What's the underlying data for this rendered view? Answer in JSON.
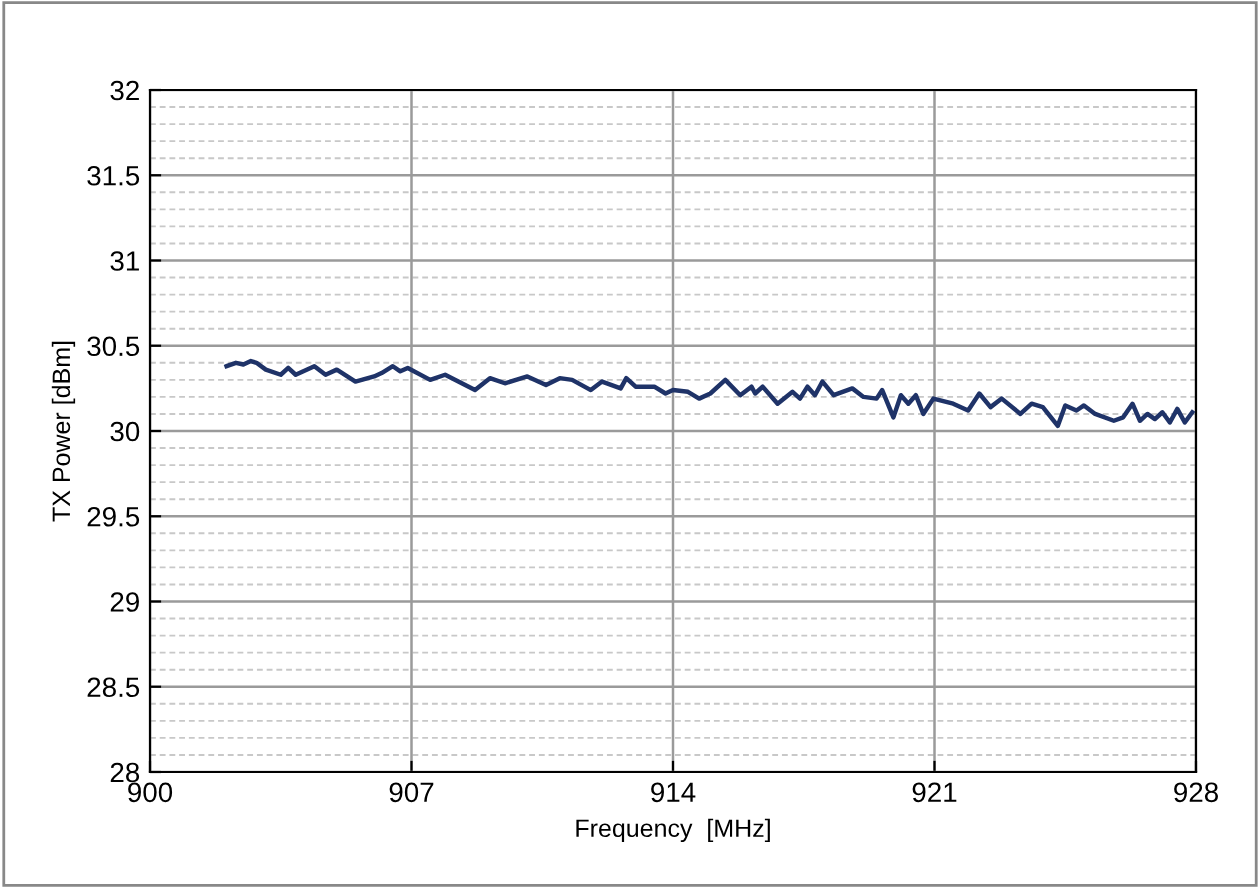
{
  "chart_data": {
    "type": "line",
    "xlabel": "Frequency  [MHz]",
    "ylabel": "TX Power [dBm]",
    "xlim": [
      900,
      928
    ],
    "xticks": [
      900,
      907,
      914,
      921,
      928
    ],
    "ylim": [
      28,
      32
    ],
    "yticks": [
      28,
      {
        "value": 28.5,
        "label": "28.5"
      },
      29,
      {
        "value": 29.5,
        "label": "29.5"
      },
      30,
      {
        "value": 30.5,
        "label": "30.5"
      },
      31,
      {
        "value": 31.5,
        "label": "31.5"
      },
      32
    ],
    "grid": true,
    "legend": false,
    "marker": "none",
    "line_style": "solid",
    "series": [
      {
        "color": "#1f3368",
        "x": [
          902.05,
          902.3,
          902.5,
          902.7,
          902.85,
          903.1,
          903.5,
          903.7,
          903.9,
          904.4,
          904.7,
          905.0,
          905.5,
          906.0,
          906.2,
          906.5,
          906.7,
          906.9,
          907.5,
          907.9,
          908.7,
          909.1,
          909.5,
          910.1,
          910.6,
          910.97,
          911.3,
          911.8,
          912.1,
          912.6,
          912.75,
          913.0,
          913.5,
          913.8,
          914.0,
          914.4,
          914.7,
          915.0,
          915.4,
          915.8,
          916.1,
          916.2,
          916.4,
          916.8,
          917.2,
          917.4,
          917.6,
          917.8,
          918.0,
          918.3,
          918.8,
          919.1,
          919.45,
          919.6,
          919.9,
          920.1,
          920.3,
          920.5,
          920.7,
          920.97,
          921.5,
          921.9,
          922.2,
          922.5,
          922.8,
          923.3,
          923.6,
          923.9,
          924.3,
          924.5,
          924.8,
          925.0,
          925.3,
          925.8,
          926.05,
          926.3,
          926.5,
          926.7,
          926.9,
          927.1,
          927.3,
          927.5,
          927.7,
          927.9
        ],
        "values": [
          30.38,
          30.4,
          30.39,
          30.41,
          30.4,
          30.36,
          30.33,
          30.37,
          30.33,
          30.38,
          30.33,
          30.36,
          30.29,
          30.32,
          30.34,
          30.38,
          30.35,
          30.37,
          30.3,
          30.33,
          30.24,
          30.31,
          30.28,
          30.32,
          30.27,
          30.31,
          30.3,
          30.24,
          30.29,
          30.25,
          30.31,
          30.26,
          30.26,
          30.22,
          30.24,
          30.23,
          30.19,
          30.22,
          30.3,
          30.21,
          30.26,
          30.22,
          30.26,
          30.16,
          30.23,
          30.19,
          30.26,
          30.21,
          30.29,
          30.21,
          30.25,
          30.2,
          30.19,
          30.24,
          30.08,
          30.21,
          30.16,
          30.21,
          30.1,
          30.19,
          30.16,
          30.12,
          30.22,
          30.14,
          30.19,
          30.1,
          30.16,
          30.14,
          30.03,
          30.15,
          30.12,
          30.15,
          30.1,
          30.06,
          30.08,
          30.16,
          30.06,
          30.1,
          30.07,
          30.11,
          30.05,
          30.13,
          30.05,
          30.11
        ]
      }
    ]
  }
}
